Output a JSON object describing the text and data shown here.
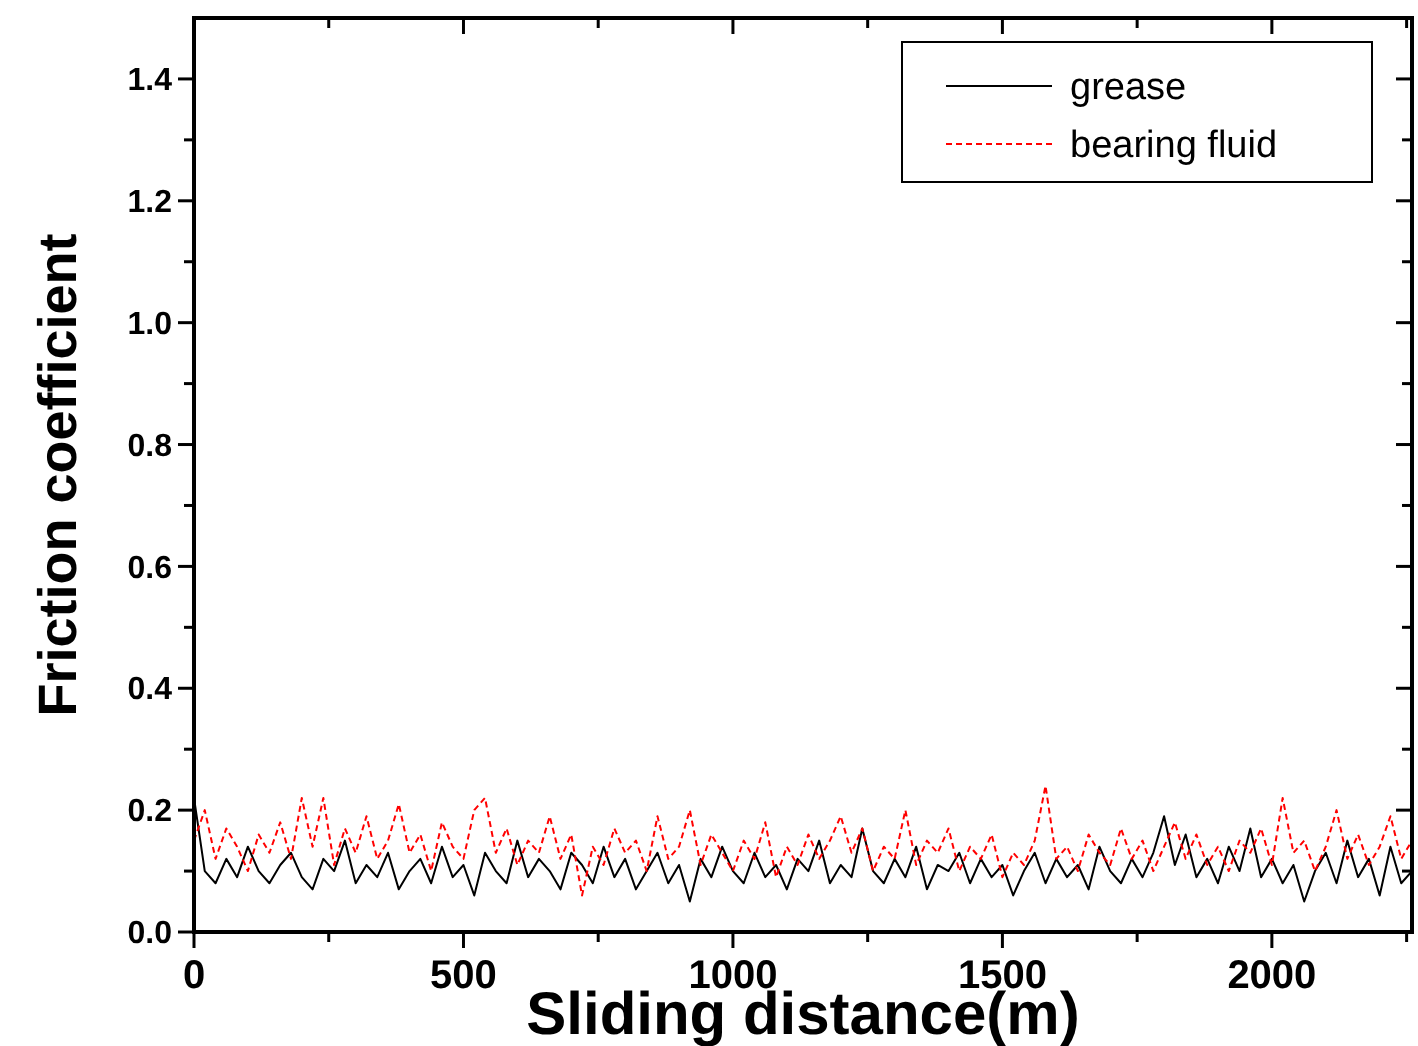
{
  "chart_data": {
    "type": "line",
    "xlabel": "Sliding distance(m)",
    "ylabel": "Friction coefficient",
    "x": [
      0,
      20,
      40,
      60,
      80,
      100,
      120,
      140,
      160,
      180,
      200,
      220,
      240,
      260,
      280,
      300,
      320,
      340,
      360,
      380,
      400,
      420,
      440,
      460,
      480,
      500,
      520,
      540,
      560,
      580,
      600,
      620,
      640,
      660,
      680,
      700,
      720,
      740,
      760,
      780,
      800,
      820,
      840,
      860,
      880,
      900,
      920,
      940,
      960,
      980,
      1000,
      1020,
      1040,
      1060,
      1080,
      1100,
      1120,
      1140,
      1160,
      1180,
      1200,
      1220,
      1240,
      1260,
      1280,
      1300,
      1320,
      1340,
      1360,
      1380,
      1400,
      1420,
      1440,
      1460,
      1480,
      1500,
      1520,
      1540,
      1560,
      1580,
      1600,
      1620,
      1640,
      1660,
      1680,
      1700,
      1720,
      1740,
      1760,
      1780,
      1800,
      1820,
      1840,
      1860,
      1880,
      1900,
      1920,
      1940,
      1960,
      1980,
      2000,
      2020,
      2040,
      2060,
      2080,
      2100,
      2120,
      2140,
      2160,
      2180,
      2200,
      2220,
      2240,
      2260
    ],
    "series": [
      {
        "name": "grease",
        "color": "#000000",
        "line_style": "solid",
        "values": [
          0.22,
          0.1,
          0.08,
          0.12,
          0.09,
          0.14,
          0.1,
          0.08,
          0.11,
          0.13,
          0.09,
          0.07,
          0.12,
          0.1,
          0.15,
          0.08,
          0.11,
          0.09,
          0.13,
          0.07,
          0.1,
          0.12,
          0.08,
          0.14,
          0.09,
          0.11,
          0.06,
          0.13,
          0.1,
          0.08,
          0.15,
          0.09,
          0.12,
          0.1,
          0.07,
          0.13,
          0.11,
          0.08,
          0.14,
          0.09,
          0.12,
          0.07,
          0.1,
          0.13,
          0.08,
          0.11,
          0.05,
          0.12,
          0.09,
          0.14,
          0.1,
          0.08,
          0.13,
          0.09,
          0.11,
          0.07,
          0.12,
          0.1,
          0.15,
          0.08,
          0.11,
          0.09,
          0.17,
          0.1,
          0.08,
          0.12,
          0.09,
          0.14,
          0.07,
          0.11,
          0.1,
          0.13,
          0.08,
          0.12,
          0.09,
          0.11,
          0.06,
          0.1,
          0.13,
          0.08,
          0.12,
          0.09,
          0.11,
          0.07,
          0.14,
          0.1,
          0.08,
          0.12,
          0.09,
          0.13,
          0.19,
          0.11,
          0.16,
          0.09,
          0.12,
          0.08,
          0.14,
          0.1,
          0.17,
          0.09,
          0.12,
          0.08,
          0.11,
          0.05,
          0.1,
          0.13,
          0.08,
          0.15,
          0.09,
          0.12,
          0.06,
          0.14,
          0.08,
          0.1
        ]
      },
      {
        "name": "bearing fluid",
        "color": "#ff0000",
        "line_style": "dashed",
        "values": [
          0.15,
          0.2,
          0.12,
          0.17,
          0.14,
          0.1,
          0.16,
          0.13,
          0.18,
          0.12,
          0.22,
          0.14,
          0.22,
          0.11,
          0.17,
          0.13,
          0.19,
          0.12,
          0.15,
          0.21,
          0.13,
          0.16,
          0.1,
          0.18,
          0.14,
          0.12,
          0.2,
          0.22,
          0.13,
          0.17,
          0.11,
          0.15,
          0.13,
          0.19,
          0.12,
          0.16,
          0.06,
          0.14,
          0.11,
          0.17,
          0.13,
          0.15,
          0.1,
          0.19,
          0.12,
          0.14,
          0.2,
          0.11,
          0.16,
          0.13,
          0.1,
          0.15,
          0.12,
          0.18,
          0.09,
          0.14,
          0.11,
          0.16,
          0.12,
          0.15,
          0.19,
          0.13,
          0.17,
          0.1,
          0.14,
          0.12,
          0.2,
          0.11,
          0.15,
          0.13,
          0.17,
          0.1,
          0.14,
          0.12,
          0.16,
          0.09,
          0.13,
          0.11,
          0.15,
          0.24,
          0.12,
          0.14,
          0.1,
          0.16,
          0.13,
          0.11,
          0.17,
          0.12,
          0.15,
          0.1,
          0.14,
          0.18,
          0.12,
          0.16,
          0.11,
          0.14,
          0.1,
          0.15,
          0.13,
          0.17,
          0.11,
          0.22,
          0.13,
          0.15,
          0.1,
          0.14,
          0.2,
          0.12,
          0.16,
          0.11,
          0.14,
          0.19,
          0.12,
          0.15
        ]
      }
    ],
    "xlim": [
      0,
      2260
    ],
    "xticks": [
      0,
      {
        "value": 250,
        "label": null
      },
      500,
      {
        "value": 750,
        "label": null
      },
      1000,
      {
        "value": 1250,
        "label": null
      },
      1500,
      {
        "value": 1750,
        "label": null
      },
      2000,
      {
        "value": 2250,
        "label": null
      }
    ],
    "ylim": [
      0,
      1.5
    ],
    "yticks": [
      {
        "value": 0,
        "label": "0.0"
      },
      {
        "value": 0.1,
        "label": null
      },
      0.2,
      {
        "value": 0.3,
        "label": null
      },
      0.4,
      {
        "value": 0.5,
        "label": null
      },
      0.6,
      {
        "value": 0.7,
        "label": null
      },
      0.8,
      {
        "value": 0.9,
        "label": null
      },
      {
        "value": 1,
        "label": "1.0"
      },
      {
        "value": 1.1,
        "label": null
      },
      1.2,
      {
        "value": 1.3,
        "label": null
      },
      1.4
    ],
    "grid": false,
    "legend": "top right"
  }
}
